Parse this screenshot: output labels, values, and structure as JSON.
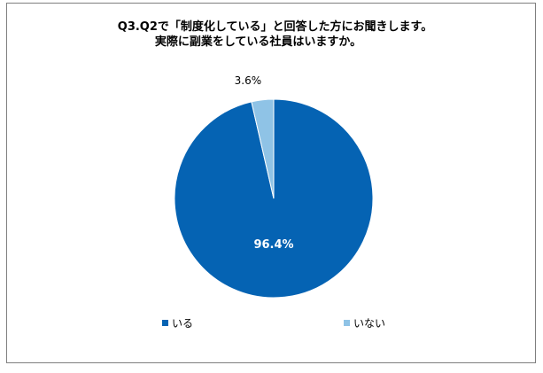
{
  "title": {
    "line1": "Q3.Q2で「制度化している」と回答した方にお聞きします。",
    "line2": "実際に副業をしている社員はいますか。"
  },
  "colors": {
    "iru": "#0563b3",
    "inai": "#8fc3e6",
    "border": "#7f7f7f"
  },
  "chart_data": {
    "type": "pie",
    "categories": [
      "いる",
      "いない"
    ],
    "values": [
      96.4,
      3.6
    ],
    "unit": "%",
    "labels": [
      "96.4%",
      "3.6%"
    ],
    "legend_position": "bottom"
  },
  "legend": {
    "items": [
      {
        "label": "いる",
        "color": "#0563b3"
      },
      {
        "label": "いない",
        "color": "#8fc3e6"
      }
    ]
  }
}
